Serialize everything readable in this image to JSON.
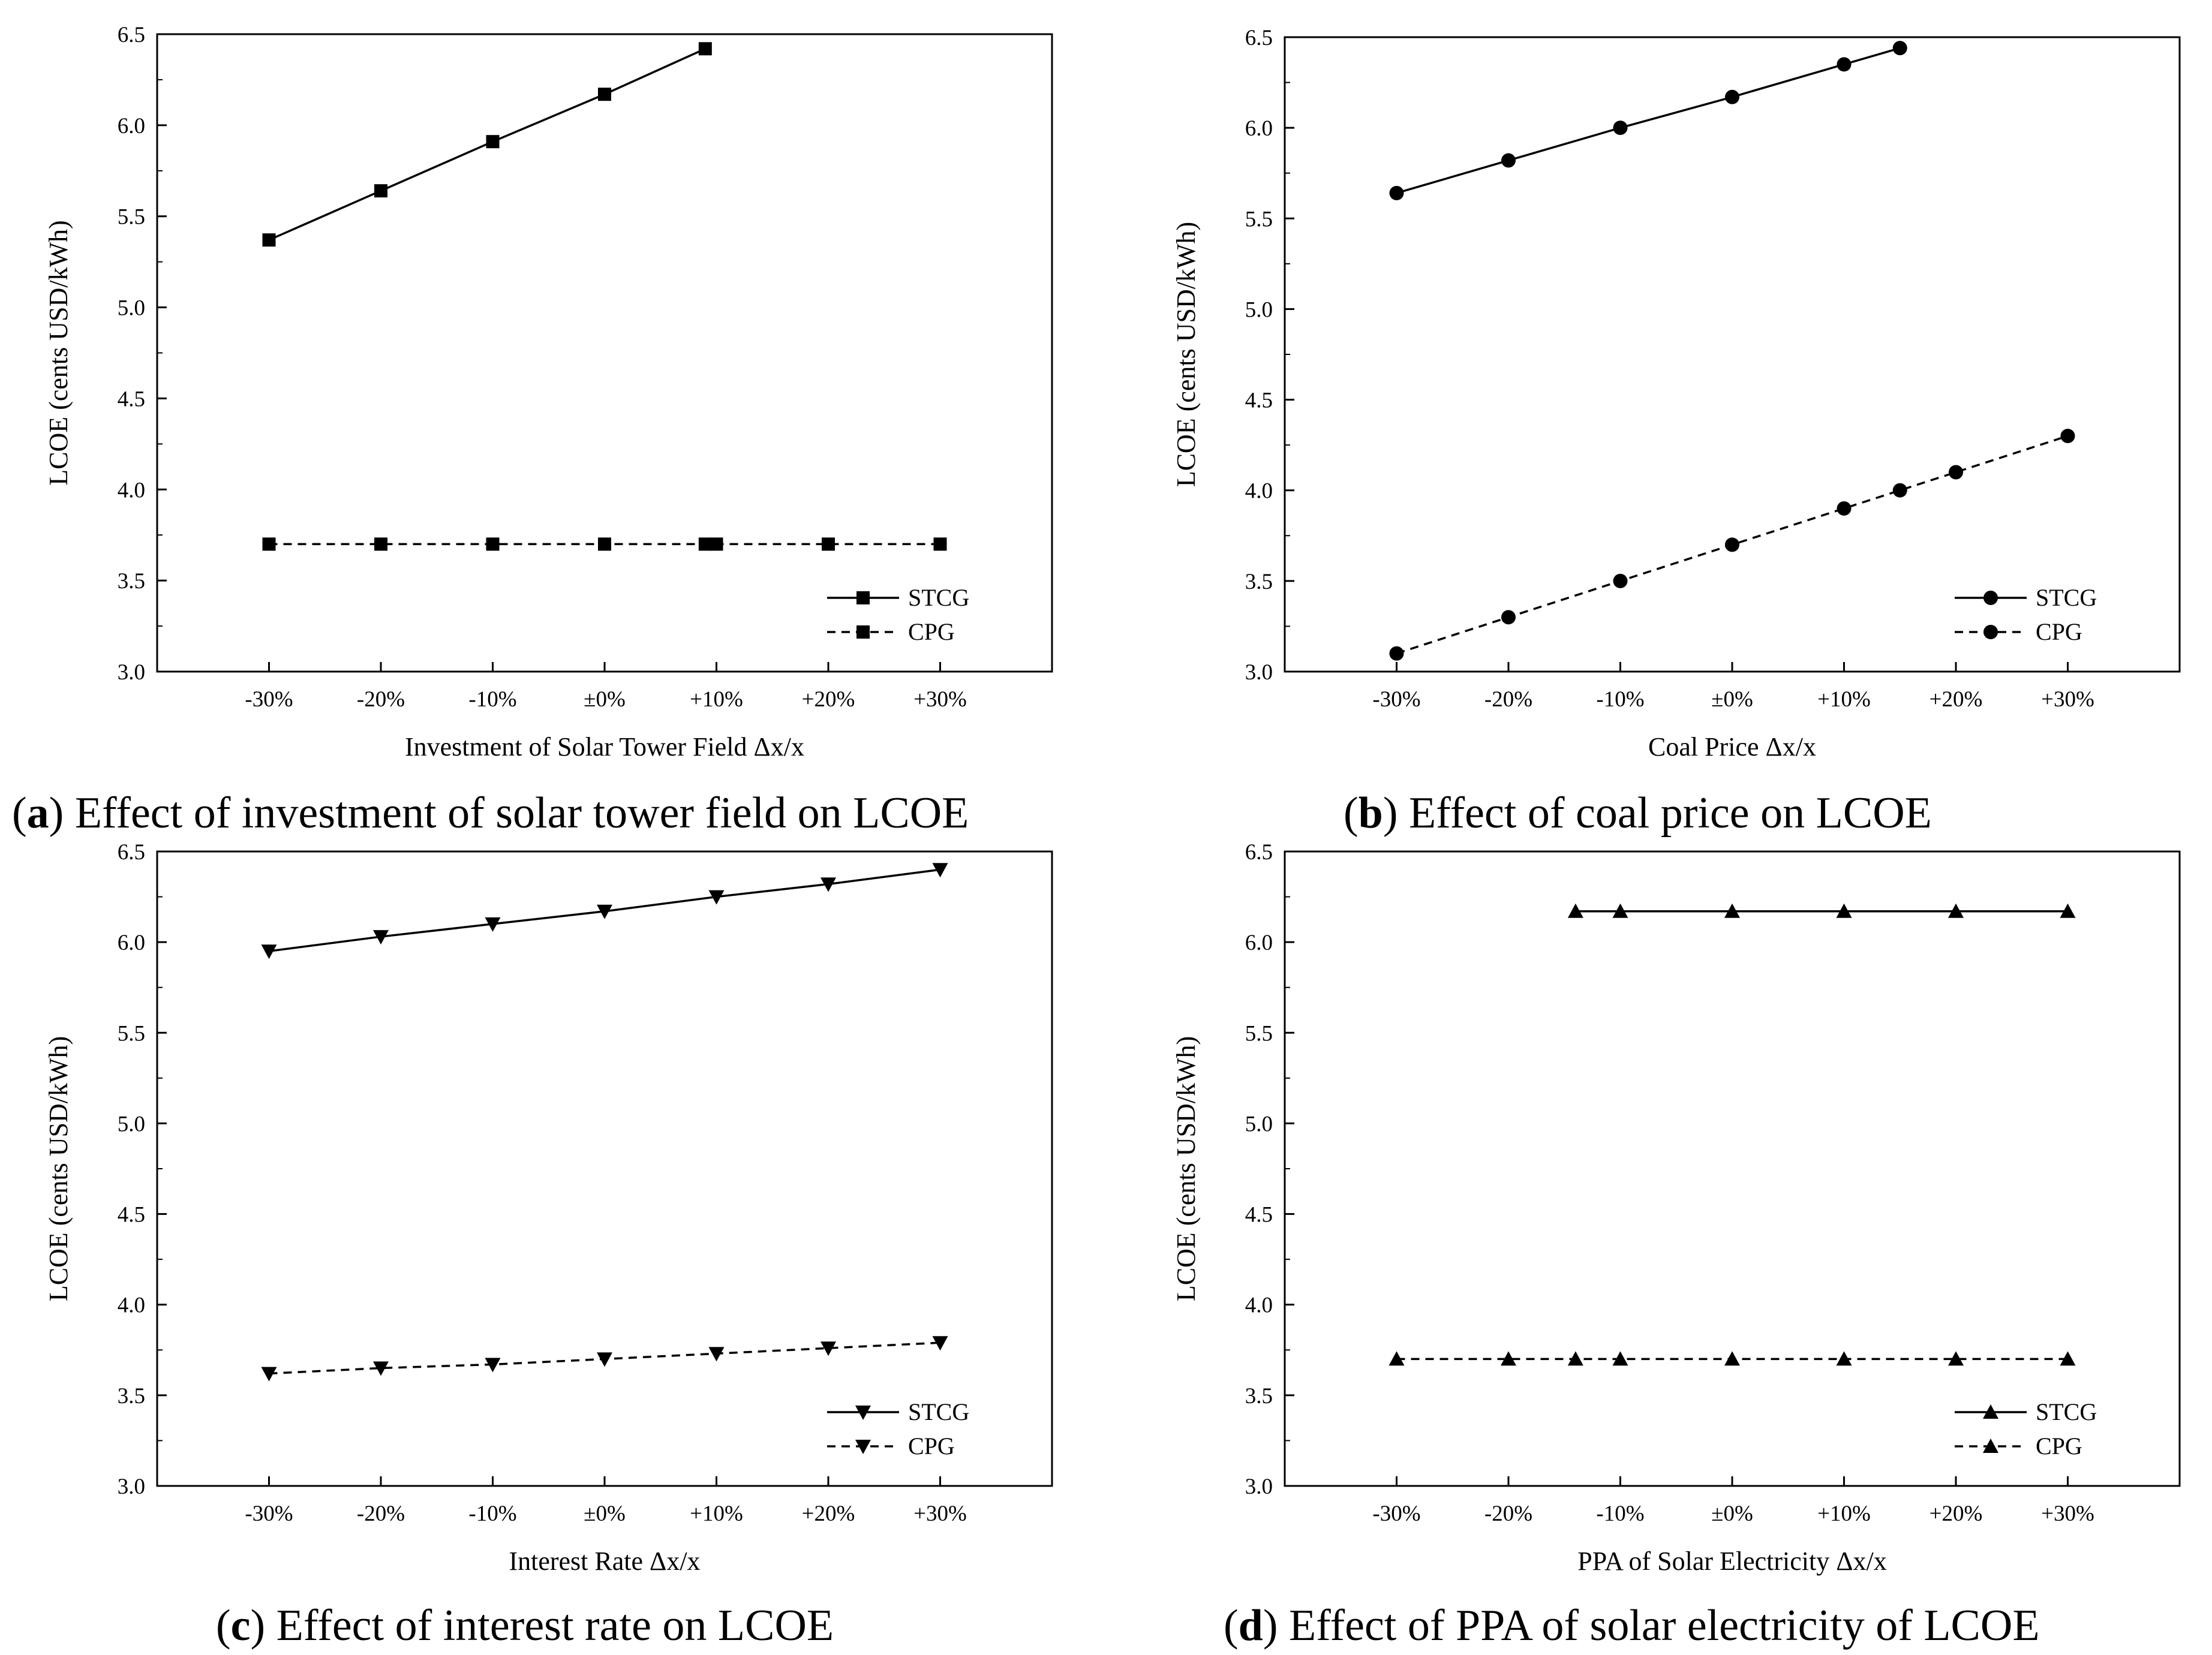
{
  "chart_data": [
    {
      "panel": "a",
      "type": "line",
      "caption_tag": "a",
      "caption_text": " Effect of investment of solar tower field on LCOE",
      "xlabel": "Investment of Solar Tower Field Δx/x",
      "ylabel": "LCOE (cents USD/kWh)",
      "categories": [
        "-30%",
        "-20%",
        "-10%",
        "±0%",
        "+10%",
        "+20%",
        "+30%"
      ],
      "ylim": [
        3.0,
        6.5
      ],
      "yticks": [
        "3.0",
        "3.5",
        "4.0",
        "4.5",
        "5.0",
        "5.5",
        "6.0",
        "6.5"
      ],
      "marker": "square",
      "legend_position": "bottom-right",
      "series": [
        {
          "name": "STCG",
          "style": "solid",
          "x": [
            -30,
            -20,
            -10,
            0,
            9
          ],
          "y": [
            5.37,
            5.64,
            5.91,
            6.17,
            6.42
          ]
        },
        {
          "name": "CPG",
          "style": "dashed",
          "x": [
            -30,
            -20,
            -10,
            0,
            9,
            10,
            20,
            30
          ],
          "y": [
            3.7,
            3.7,
            3.7,
            3.7,
            3.7,
            3.7,
            3.7,
            3.7
          ]
        }
      ]
    },
    {
      "panel": "b",
      "type": "line",
      "caption_tag": "b",
      "caption_text": " Effect of coal price on LCOE",
      "xlabel": "Coal Price Δx/x",
      "ylabel": "LCOE (cents USD/kWh)",
      "categories": [
        "-30%",
        "-20%",
        "-10%",
        "±0%",
        "+10%",
        "+20%",
        "+30%"
      ],
      "ylim": [
        3.0,
        6.5
      ],
      "yticks": [
        "3.0",
        "3.5",
        "4.0",
        "4.5",
        "5.0",
        "5.5",
        "6.0",
        "6.5"
      ],
      "marker": "circle",
      "legend_position": "bottom-right",
      "series": [
        {
          "name": "STCG",
          "style": "solid",
          "x": [
            -30,
            -20,
            -10,
            0,
            10,
            15
          ],
          "y": [
            5.64,
            5.82,
            6.0,
            6.17,
            6.35,
            6.44
          ]
        },
        {
          "name": "CPG",
          "style": "dashed",
          "x": [
            -30,
            -20,
            -10,
            0,
            10,
            15,
            20,
            30
          ],
          "y": [
            3.1,
            3.3,
            3.5,
            3.7,
            3.9,
            4.0,
            4.1,
            4.3
          ]
        }
      ]
    },
    {
      "panel": "c",
      "type": "line",
      "caption_tag": "c",
      "caption_text": " Effect of interest rate on LCOE",
      "xlabel": "Interest Rate Δx/x",
      "ylabel": "LCOE (cents USD/kWh)",
      "categories": [
        "-30%",
        "-20%",
        "-10%",
        "±0%",
        "+10%",
        "+20%",
        "+30%"
      ],
      "ylim": [
        3.0,
        6.5
      ],
      "yticks": [
        "3.0",
        "3.5",
        "4.0",
        "4.5",
        "5.0",
        "5.5",
        "6.0",
        "6.5"
      ],
      "marker": "triangle-down",
      "legend_position": "bottom-right",
      "series": [
        {
          "name": "STCG",
          "style": "solid",
          "x": [
            -30,
            -20,
            -10,
            0,
            10,
            20,
            30
          ],
          "y": [
            5.95,
            6.03,
            6.1,
            6.17,
            6.25,
            6.32,
            6.4
          ]
        },
        {
          "name": "CPG",
          "style": "dashed",
          "x": [
            -30,
            -20,
            -10,
            0,
            10,
            20,
            30
          ],
          "y": [
            3.62,
            3.65,
            3.67,
            3.7,
            3.73,
            3.76,
            3.79
          ]
        }
      ]
    },
    {
      "panel": "d",
      "type": "line",
      "caption_tag": "d",
      "caption_text": " Effect of PPA of solar electricity of LCOE",
      "xlabel": "PPA of Solar Electricity Δx/x",
      "ylabel": "LCOE (cents USD/kWh)",
      "categories": [
        "-30%",
        "-20%",
        "-10%",
        "±0%",
        "+10%",
        "+20%",
        "+30%"
      ],
      "ylim": [
        3.0,
        6.5
      ],
      "yticks": [
        "3.0",
        "3.5",
        "4.0",
        "4.5",
        "5.0",
        "5.5",
        "6.0",
        "6.5"
      ],
      "marker": "triangle-up",
      "legend_position": "bottom-right",
      "series": [
        {
          "name": "STCG",
          "style": "solid",
          "x": [
            -14,
            -10,
            0,
            10,
            20,
            30
          ],
          "y": [
            6.17,
            6.17,
            6.17,
            6.17,
            6.17,
            6.17
          ]
        },
        {
          "name": "CPG",
          "style": "dashed",
          "x": [
            -30,
            -20,
            -14,
            -10,
            0,
            10,
            20,
            30
          ],
          "y": [
            3.7,
            3.7,
            3.7,
            3.7,
            3.7,
            3.7,
            3.7,
            3.7
          ]
        }
      ]
    }
  ]
}
